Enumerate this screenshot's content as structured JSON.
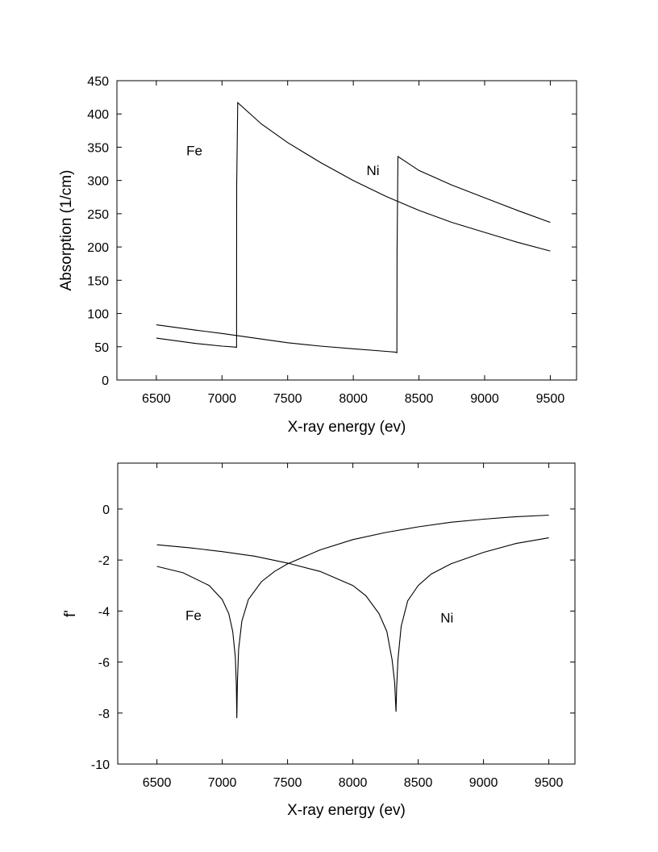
{
  "chart_data": [
    {
      "type": "line",
      "xlabel": "X-ray energy (ev)",
      "ylabel": "Absorption (1/cm)",
      "xlim": [
        6200,
        9700
      ],
      "ylim": [
        0,
        450
      ],
      "x_ticks": [
        6500,
        7000,
        7500,
        8000,
        8500,
        9000,
        9500
      ],
      "y_ticks": [
        0,
        50,
        100,
        150,
        200,
        250,
        300,
        350,
        400,
        450
      ],
      "x_tick_labels": [
        "6500",
        "7000",
        "7500",
        "8000",
        "8500",
        "9000",
        "9500"
      ],
      "y_tick_labels": [
        "0",
        "50",
        "100",
        "150",
        "200",
        "250",
        "300",
        "350",
        "400",
        "450"
      ],
      "grid": false,
      "legend": "none",
      "series": [
        {
          "name": "Fe",
          "x": [
            6500,
            6800,
            7000,
            7100,
            7111,
            7112,
            7120,
            7300,
            7500,
            7750,
            8000,
            8250,
            8500,
            8750,
            9000,
            9250,
            9500
          ],
          "values": [
            63,
            55,
            51,
            49.5,
            49,
            290,
            417,
            385,
            357,
            327,
            300,
            276,
            255,
            237,
            222,
            207,
            194
          ]
        },
        {
          "name": "Ni",
          "x": [
            6500,
            6800,
            7000,
            7250,
            7500,
            7750,
            8000,
            8250,
            8320,
            8332,
            8333,
            8340,
            8500,
            8750,
            9000,
            9250,
            9500
          ],
          "values": [
            83,
            75,
            70,
            63,
            56,
            51,
            47,
            43,
            42,
            41,
            190,
            336,
            315,
            293,
            274,
            255,
            237
          ]
        }
      ],
      "annotations": [
        {
          "text": "Fe",
          "x": 6790,
          "y": 338
        },
        {
          "text": "Ni",
          "x": 8150,
          "y": 308
        }
      ]
    },
    {
      "type": "line",
      "xlabel": "X-ray energy (ev)",
      "ylabel": "f'",
      "xlim": [
        6200,
        9700
      ],
      "ylim": [
        -10,
        1.8
      ],
      "x_ticks": [
        6500,
        7000,
        7500,
        8000,
        8500,
        9000,
        9500
      ],
      "y_ticks": [
        -10,
        -8,
        -6,
        -4,
        -2,
        0
      ],
      "x_tick_labels": [
        "6500",
        "7000",
        "7500",
        "8000",
        "8500",
        "9000",
        "9500"
      ],
      "y_tick_labels": [
        "-10",
        "-8",
        "-6",
        "-4",
        "-2",
        "0"
      ],
      "grid": false,
      "legend": "none",
      "series": [
        {
          "name": "Fe",
          "x": [
            6500,
            6700,
            6900,
            7000,
            7050,
            7080,
            7100,
            7108,
            7112,
            7116,
            7125,
            7150,
            7200,
            7300,
            7400,
            7500,
            7750,
            8000,
            8250,
            8500,
            8750,
            9000,
            9250,
            9500
          ],
          "values": [
            -2.25,
            -2.5,
            -3.0,
            -3.55,
            -4.1,
            -4.8,
            -5.8,
            -6.9,
            -8.2,
            -6.8,
            -5.5,
            -4.4,
            -3.55,
            -2.85,
            -2.45,
            -2.15,
            -1.6,
            -1.2,
            -0.92,
            -0.7,
            -0.52,
            -0.4,
            -0.3,
            -0.24
          ]
        },
        {
          "name": "Ni",
          "x": [
            6500,
            6750,
            7000,
            7250,
            7500,
            7750,
            8000,
            8100,
            8200,
            8260,
            8300,
            8320,
            8330,
            8335,
            8345,
            8370,
            8420,
            8500,
            8600,
            8750,
            9000,
            9250,
            9500
          ],
          "values": [
            -1.4,
            -1.52,
            -1.67,
            -1.85,
            -2.12,
            -2.45,
            -3.0,
            -3.4,
            -4.1,
            -4.8,
            -5.9,
            -6.8,
            -7.95,
            -7.0,
            -5.9,
            -4.6,
            -3.6,
            -3.0,
            -2.55,
            -2.15,
            -1.7,
            -1.35,
            -1.13
          ]
        }
      ],
      "annotations": [
        {
          "text": "Fe",
          "x": 6780,
          "y": -4.35
        },
        {
          "text": "Ni",
          "x": 8720,
          "y": -4.45
        }
      ]
    }
  ]
}
